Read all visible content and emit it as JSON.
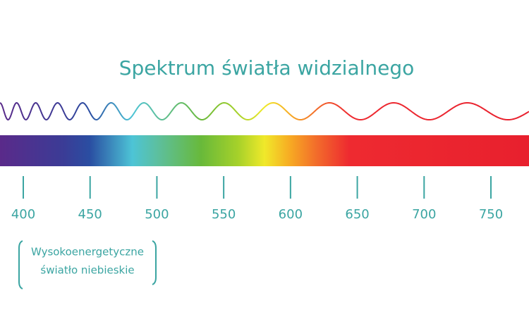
{
  "title": "Spektrum światła widzialnego",
  "ticks": [
    400,
    450,
    500,
    550,
    600,
    650,
    700,
    750
  ],
  "annotation": {
    "lines": [
      "Wysokoenergetyczne",
      "światło niebieskie"
    ]
  }
}
